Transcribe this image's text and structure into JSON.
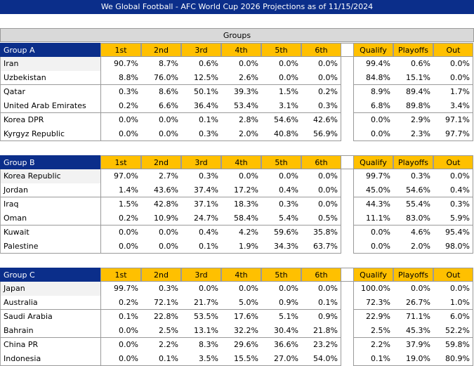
{
  "title": "We Global Football - AFC World Cup 2026 Projections as of 11/15/2024",
  "groups_header": "Groups",
  "groups": [
    {
      "name": "Group A",
      "columns": [
        "1st",
        "2nd",
        "3rd",
        "4th",
        "5th",
        "6th",
        "Qualify",
        "Playoffs",
        "Out"
      ],
      "rows": [
        {
          "team": "Iran",
          "values": [
            "90.7%",
            "8.7%",
            "0.6%",
            "0.0%",
            "0.0%",
            "0.0%",
            "99.4%",
            "0.6%",
            "0.0%"
          ]
        },
        {
          "team": "Uzbekistan",
          "values": [
            "8.8%",
            "76.0%",
            "12.5%",
            "2.6%",
            "0.0%",
            "0.0%",
            "84.8%",
            "15.1%",
            "0.0%"
          ]
        },
        {
          "team": "Qatar",
          "values": [
            "0.3%",
            "8.6%",
            "50.1%",
            "39.3%",
            "1.5%",
            "0.2%",
            "8.9%",
            "89.4%",
            "1.7%"
          ]
        },
        {
          "team": "United Arab Emirates",
          "values": [
            "0.2%",
            "6.6%",
            "36.4%",
            "53.4%",
            "3.1%",
            "0.3%",
            "6.8%",
            "89.8%",
            "3.4%"
          ]
        },
        {
          "team": "Korea DPR",
          "values": [
            "0.0%",
            "0.0%",
            "0.1%",
            "2.8%",
            "54.6%",
            "42.6%",
            "0.0%",
            "2.9%",
            "97.1%"
          ]
        },
        {
          "team": "Kyrgyz Republic",
          "values": [
            "0.0%",
            "0.0%",
            "0.3%",
            "2.0%",
            "40.8%",
            "56.9%",
            "0.0%",
            "2.3%",
            "97.7%"
          ]
        }
      ]
    },
    {
      "name": "Group B",
      "columns": [
        "1st",
        "2nd",
        "3rd",
        "4th",
        "5th",
        "6th",
        "Qualify",
        "Playoffs",
        "Out"
      ],
      "rows": [
        {
          "team": "Korea Republic",
          "values": [
            "97.0%",
            "2.7%",
            "0.3%",
            "0.0%",
            "0.0%",
            "0.0%",
            "99.7%",
            "0.3%",
            "0.0%"
          ]
        },
        {
          "team": "Jordan",
          "values": [
            "1.4%",
            "43.6%",
            "37.4%",
            "17.2%",
            "0.4%",
            "0.0%",
            "45.0%",
            "54.6%",
            "0.4%"
          ]
        },
        {
          "team": "Iraq",
          "values": [
            "1.5%",
            "42.8%",
            "37.1%",
            "18.3%",
            "0.3%",
            "0.0%",
            "44.3%",
            "55.4%",
            "0.3%"
          ]
        },
        {
          "team": "Oman",
          "values": [
            "0.2%",
            "10.9%",
            "24.7%",
            "58.4%",
            "5.4%",
            "0.5%",
            "11.1%",
            "83.0%",
            "5.9%"
          ]
        },
        {
          "team": "Kuwait",
          "values": [
            "0.0%",
            "0.0%",
            "0.4%",
            "4.2%",
            "59.6%",
            "35.8%",
            "0.0%",
            "4.6%",
            "95.4%"
          ]
        },
        {
          "team": "Palestine",
          "values": [
            "0.0%",
            "0.0%",
            "0.1%",
            "1.9%",
            "34.3%",
            "63.7%",
            "0.0%",
            "2.0%",
            "98.0%"
          ]
        }
      ]
    },
    {
      "name": "Group C",
      "columns": [
        "1st",
        "2nd",
        "3rd",
        "4th",
        "5th",
        "6th",
        "Qualify",
        "Playoffs",
        "Out"
      ],
      "rows": [
        {
          "team": "Japan",
          "values": [
            "99.7%",
            "0.3%",
            "0.0%",
            "0.0%",
            "0.0%",
            "0.0%",
            "100.0%",
            "0.0%",
            "0.0%"
          ]
        },
        {
          "team": "Australia",
          "values": [
            "0.2%",
            "72.1%",
            "21.7%",
            "5.0%",
            "0.9%",
            "0.1%",
            "72.3%",
            "26.7%",
            "1.0%"
          ]
        },
        {
          "team": "Saudi Arabia",
          "values": [
            "0.1%",
            "22.8%",
            "53.5%",
            "17.6%",
            "5.1%",
            "0.9%",
            "22.9%",
            "71.1%",
            "6.0%"
          ]
        },
        {
          "team": "Bahrain",
          "values": [
            "0.0%",
            "2.5%",
            "13.1%",
            "32.2%",
            "30.4%",
            "21.8%",
            "2.5%",
            "45.3%",
            "52.2%"
          ]
        },
        {
          "team": "China PR",
          "values": [
            "0.0%",
            "2.2%",
            "8.3%",
            "29.6%",
            "36.6%",
            "23.2%",
            "2.2%",
            "37.9%",
            "59.8%"
          ]
        },
        {
          "team": "Indonesia",
          "values": [
            "0.0%",
            "0.1%",
            "3.5%",
            "15.5%",
            "27.0%",
            "54.0%",
            "0.1%",
            "19.0%",
            "80.9%"
          ]
        }
      ]
    }
  ]
}
